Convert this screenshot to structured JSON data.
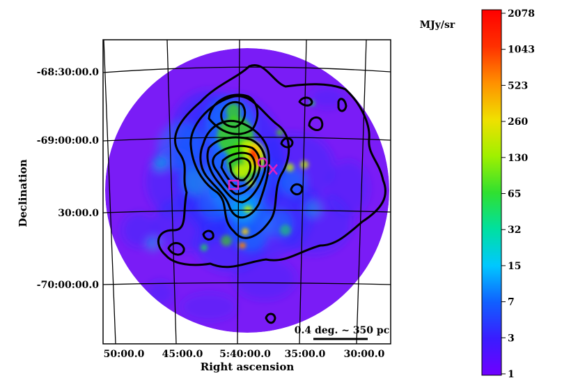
{
  "chart_data": {
    "type": "heatmap",
    "title": "",
    "xlabel": "Right ascension",
    "ylabel": "Declination",
    "x_ticks": [
      "50:00.0",
      "45:00.0",
      "5:40:00.0",
      "35:00.0",
      "30:00.0"
    ],
    "y_ticks": [
      "-68:30:00.0",
      "-69:00:00.0",
      "30:00.0",
      "-70:00:00.0"
    ],
    "scale_bar_label": "0.4 deg. ~ 350 pc",
    "colorbar": {
      "unit": "MJy/sr",
      "scale": "log",
      "range": [
        1,
        2078
      ],
      "ticks": [
        "2078",
        "1043",
        "523",
        "260",
        "130",
        "65",
        "32",
        "15",
        "7",
        "3",
        "1"
      ],
      "colormap": [
        "#7000ff",
        "#2030ff",
        "#00a0ff",
        "#00e0e0",
        "#20d060",
        "#40e000",
        "#c0f000",
        "#ffd000",
        "#ff8000",
        "#ff2000",
        "#ff0000"
      ]
    },
    "markers": [
      {
        "shape": "circle",
        "color": "#e020c0"
      },
      {
        "shape": "x",
        "color": "#e020c0"
      },
      {
        "shape": "square",
        "color": "#e020c0"
      }
    ],
    "contour_color": "#000000",
    "background_color": "#7a1cf6"
  }
}
